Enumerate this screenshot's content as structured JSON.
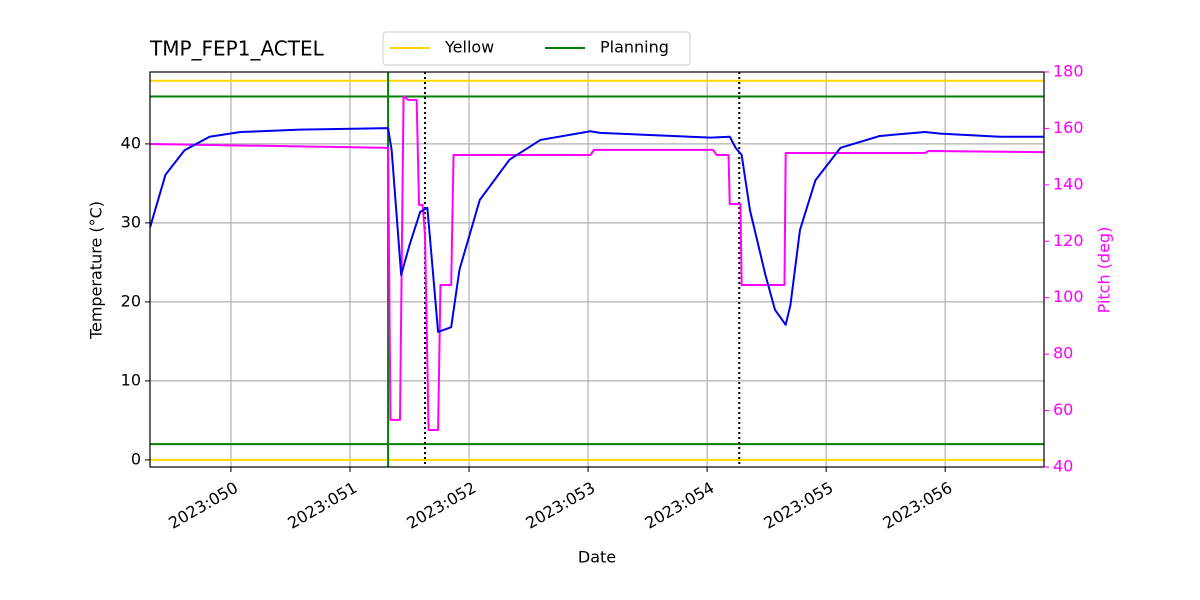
{
  "chart_data": {
    "type": "line",
    "title": "TMP_FEP1_ACTEL",
    "xlabel": "Date",
    "ylabel": "Temperature (°C)",
    "y2label": "Pitch (deg)",
    "xlim": [
      49.32,
      56.83
    ],
    "xticks": [
      {
        "value": 50,
        "label": "2023:050"
      },
      {
        "value": 51,
        "label": "2023:051"
      },
      {
        "value": 52,
        "label": "2023:052"
      },
      {
        "value": 53,
        "label": "2023:053"
      },
      {
        "value": 54,
        "label": "2023:054"
      },
      {
        "value": 55,
        "label": "2023:055"
      },
      {
        "value": 56,
        "label": "2023:056"
      }
    ],
    "ylim": [
      -0.9,
      49.1
    ],
    "yticks": [
      0,
      10,
      20,
      30,
      40
    ],
    "y2lim": [
      40,
      180
    ],
    "y2ticks": [
      40,
      60,
      80,
      100,
      120,
      140,
      160,
      180
    ],
    "y2color": "#ff00ff",
    "grid": true,
    "series": [
      {
        "color": "#0000ee",
        "x": [
          49.32,
          49.45,
          49.61,
          49.82,
          50.08,
          50.58,
          51.32,
          51.35,
          51.43,
          51.5,
          51.59,
          51.65,
          51.74,
          51.85,
          51.92,
          52.09,
          52.34,
          52.6,
          53.02,
          53.1,
          54.03,
          54.19,
          54.24,
          54.29,
          54.36,
          54.49,
          54.57,
          54.66,
          54.7,
          54.78,
          54.91,
          55.12,
          55.45,
          55.83,
          55.96,
          56.46,
          56.83
        ],
        "values": [
          29.4,
          36.1,
          39.2,
          40.9,
          41.5,
          41.8,
          42.0,
          39.2,
          23.4,
          27.2,
          31.4,
          31.9,
          16.2,
          16.8,
          24.1,
          32.9,
          38.0,
          40.5,
          41.6,
          41.4,
          40.8,
          40.9,
          39.5,
          38.6,
          31.6,
          23.4,
          19.0,
          17.1,
          19.6,
          29.1,
          35.4,
          39.5,
          41.0,
          41.5,
          41.3,
          40.9,
          40.9
        ]
      },
      {
        "color": "#ff00ff",
        "axis": "y2",
        "x": [
          49.32,
          51.32,
          51.34,
          51.42,
          51.45,
          51.49,
          51.56,
          51.58,
          51.61,
          51.63,
          51.66,
          51.74,
          51.76,
          51.85,
          51.87,
          53.02,
          53.05,
          54.05,
          54.08,
          54.18,
          54.19,
          54.28,
          54.29,
          54.65,
          54.66,
          55.83,
          55.86,
          56.83
        ],
        "values": [
          154.5,
          153.1,
          56.7,
          56.7,
          171.5,
          170.1,
          170.1,
          132.9,
          132.9,
          122.2,
          53.1,
          53.1,
          104.5,
          104.5,
          150.6,
          150.6,
          152.4,
          152.4,
          150.6,
          150.6,
          133.2,
          133.2,
          104.5,
          104.5,
          151.3,
          151.3,
          152.0,
          151.6
        ]
      }
    ],
    "hlines": [
      {
        "name": "Yellow",
        "color": "#ffd700",
        "values": [
          48,
          0
        ]
      },
      {
        "name": "Planning",
        "color": "#008000",
        "values": [
          46,
          2
        ]
      }
    ],
    "vlines": [
      {
        "color": "#008000",
        "style": "solid",
        "x": [
          51.32
        ]
      },
      {
        "color": "#000000",
        "style": "dotted",
        "x": [
          51.63,
          54.27
        ]
      }
    ]
  }
}
